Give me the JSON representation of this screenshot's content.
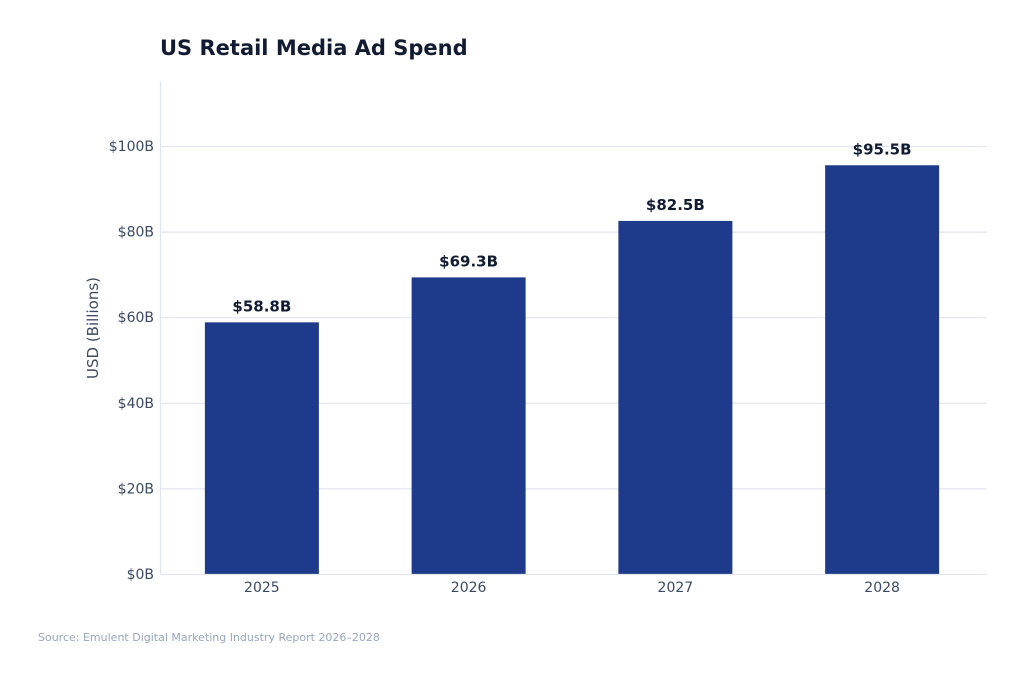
{
  "chart_data": {
    "type": "bar",
    "title": "US Retail Media Ad Spend",
    "xlabel": "",
    "ylabel": "USD (Billions)",
    "categories": [
      "2025",
      "2026",
      "2027",
      "2028"
    ],
    "values": [
      58.8,
      69.3,
      82.5,
      95.5
    ],
    "data_labels": [
      "$58.8B",
      "$69.3B",
      "$82.5B",
      "$95.5B"
    ],
    "ylim": [
      0,
      115
    ],
    "yticks": [
      0,
      20,
      40,
      60,
      80,
      100
    ],
    "ytick_labels": [
      "$0B",
      "$20B",
      "$40B",
      "$60B",
      "$80B",
      "$100B"
    ],
    "grid": "horizontal",
    "bar_color": "#1e3a8a",
    "source": "Source: Emulent Digital Marketing Industry Report 2026–2028"
  }
}
